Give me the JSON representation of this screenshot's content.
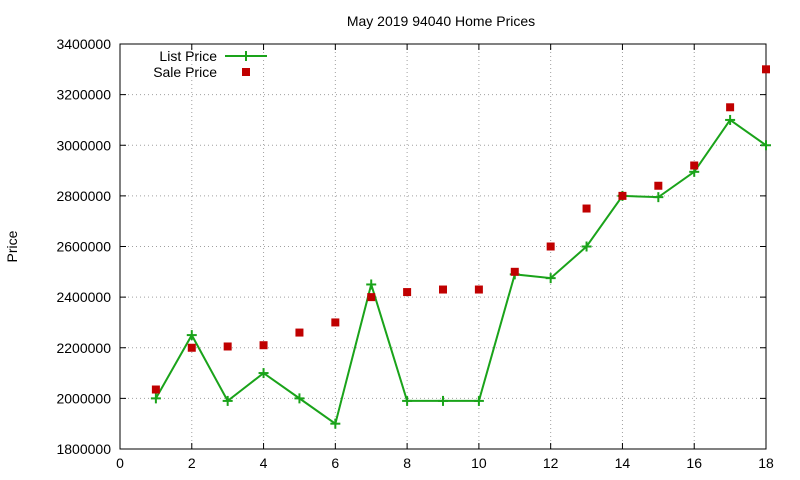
{
  "chart_data": {
    "type": "line",
    "title": "May 2019 94040 Home Prices",
    "xlabel": "",
    "ylabel": "Price",
    "xlim": [
      0,
      18
    ],
    "ylim": [
      1800000,
      3400000
    ],
    "x_ticks": [
      0,
      2,
      4,
      6,
      8,
      10,
      12,
      14,
      16,
      18
    ],
    "y_ticks": [
      1800000,
      2000000,
      2200000,
      2400000,
      2600000,
      2800000,
      3000000,
      3200000,
      3400000
    ],
    "grid": true,
    "legend_position": "top-left",
    "series": [
      {
        "name": "List Price",
        "style": "line-with-plus-markers",
        "color": "#1aa31a",
        "x": [
          1,
          2,
          3,
          4,
          5,
          6,
          7,
          8,
          9,
          10,
          11,
          12,
          13,
          14,
          15,
          16,
          17,
          18
        ],
        "y": [
          2000000,
          2250000,
          1990000,
          2100000,
          2000000,
          1900000,
          2450000,
          1990000,
          1990000,
          1990000,
          2490000,
          2475000,
          2600000,
          2800000,
          2795000,
          2895000,
          3100000,
          3000000
        ]
      },
      {
        "name": "Sale Price",
        "style": "square-markers",
        "color": "#c00000",
        "x": [
          1,
          2,
          3,
          4,
          5,
          6,
          7,
          8,
          9,
          10,
          11,
          12,
          13,
          14,
          15,
          16,
          17,
          18
        ],
        "y": [
          2035000,
          2200000,
          2205000,
          2210000,
          2260000,
          2300000,
          2400000,
          2420000,
          2430000,
          2430000,
          2500000,
          2600000,
          2750000,
          2800000,
          2840000,
          2920000,
          3150000,
          3300000
        ]
      }
    ]
  }
}
